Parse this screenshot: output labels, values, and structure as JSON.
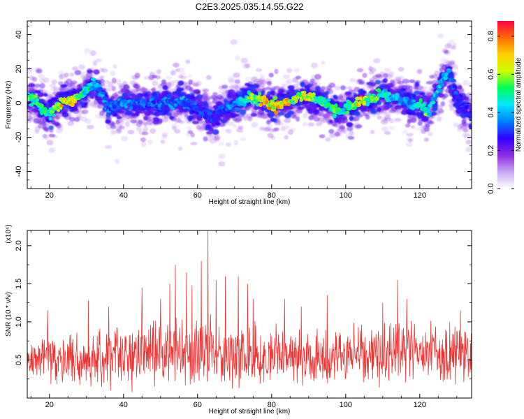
{
  "title": "C2E3.2025.035.14.55.G22",
  "chart_data": [
    {
      "type": "heatmap",
      "xlabel": "Height of straight line (km)",
      "ylabel": "Frequency (Hz)",
      "xlim": [
        14,
        134
      ],
      "ylim": [
        -50,
        48
      ],
      "xticks": [
        20,
        40,
        60,
        80,
        100,
        120
      ],
      "yticks": [
        -40,
        -20,
        0,
        20,
        40
      ],
      "colorbar": {
        "label": "Normalized spectral amplitude",
        "range": [
          0.0,
          0.88
        ],
        "ticks": [
          0.0,
          0.2,
          0.4,
          0.6,
          0.8
        ],
        "tick_labels": [
          "0.0",
          "0.2",
          "0.4",
          "0.6",
          "0.8"
        ],
        "colors": [
          "#ffffff",
          "#c9a6f5",
          "#8a2be2",
          "#3300ff",
          "#0080ff",
          "#00e5ff",
          "#00ff55",
          "#ccff00",
          "#ffd000",
          "#ff6a00",
          "#ff0044"
        ]
      },
      "ridge": {
        "x": [
          14,
          16,
          18,
          20,
          22,
          24,
          26,
          28,
          30,
          32,
          34,
          36,
          38,
          40,
          42,
          44,
          46,
          48,
          50,
          52,
          54,
          56,
          58,
          60,
          62,
          64,
          66,
          68,
          70,
          72,
          74,
          76,
          78,
          80,
          82,
          84,
          86,
          88,
          90,
          92,
          94,
          96,
          98,
          100,
          102,
          104,
          106,
          108,
          110,
          112,
          114,
          116,
          118,
          120,
          122,
          124,
          126,
          128,
          130,
          132,
          134
        ],
        "y": [
          3,
          2,
          -3,
          -6,
          -2,
          2,
          1,
          3,
          8,
          11,
          6,
          -4,
          -1,
          1,
          0,
          1,
          -1,
          0,
          -1,
          1,
          0,
          2,
          -1,
          -3,
          -6,
          -9,
          -5,
          -3,
          -1,
          1,
          3,
          2,
          1,
          -2,
          -1,
          0,
          2,
          4,
          3,
          2,
          1,
          -3,
          -5,
          -3,
          -2,
          1,
          2,
          3,
          5,
          4,
          3,
          1,
          -1,
          0,
          -5,
          3,
          13,
          18,
          3,
          -4,
          -8
        ],
        "peak_amplitude": [
          0.55,
          0.55,
          0.5,
          0.55,
          0.6,
          0.8,
          0.7,
          0.6,
          0.5,
          0.45,
          0.4,
          0.35,
          0.35,
          0.4,
          0.35,
          0.35,
          0.35,
          0.35,
          0.35,
          0.4,
          0.35,
          0.4,
          0.35,
          0.35,
          0.3,
          0.3,
          0.3,
          0.35,
          0.4,
          0.45,
          0.55,
          0.6,
          0.8,
          0.7,
          0.75,
          0.75,
          0.6,
          0.7,
          0.65,
          0.55,
          0.55,
          0.5,
          0.55,
          0.5,
          0.55,
          0.75,
          0.55,
          0.55,
          0.5,
          0.5,
          0.45,
          0.4,
          0.4,
          0.5,
          0.55,
          0.45,
          0.45,
          0.4,
          0.3,
          0.3,
          0.3
        ]
      }
    },
    {
      "type": "line",
      "xlabel": "Height of straight line (km)",
      "ylabel": "SNR (10 * v/v)",
      "y_multiplier": "(x10⁴)",
      "xlim": [
        14,
        134
      ],
      "ylim": [
        0,
        2.2
      ],
      "xticks": [
        20,
        40,
        60,
        80,
        100,
        120
      ],
      "yticks": [
        0.5,
        1.0,
        1.5,
        2.0
      ],
      "ytick_labels": [
        "0.5",
        "1.0",
        "1.5",
        "2.0"
      ],
      "series": [
        {
          "color": "#ee3333",
          "sample_step_km": 0.1,
          "envelope_x": [
            14,
            20,
            30,
            40,
            50,
            60,
            70,
            80,
            90,
            100,
            110,
            120,
            134
          ],
          "envelope_mean": [
            0.5,
            0.55,
            0.5,
            0.55,
            0.6,
            0.6,
            0.55,
            0.55,
            0.55,
            0.55,
            0.6,
            0.6,
            0.6
          ],
          "envelope_spread": [
            0.2,
            0.35,
            0.4,
            0.45,
            0.5,
            0.5,
            0.45,
            0.4,
            0.4,
            0.4,
            0.45,
            0.45,
            0.45
          ],
          "spikes": [
            {
              "x": 19.5,
              "y": 1.15
            },
            {
              "x": 30.5,
              "y": 1.28
            },
            {
              "x": 36.0,
              "y": 1.2
            },
            {
              "x": 45.0,
              "y": 1.45
            },
            {
              "x": 50.0,
              "y": 1.3
            },
            {
              "x": 52.5,
              "y": 1.5
            },
            {
              "x": 54.0,
              "y": 1.75
            },
            {
              "x": 57.0,
              "y": 1.65
            },
            {
              "x": 58.5,
              "y": 1.48
            },
            {
              "x": 61.0,
              "y": 1.8
            },
            {
              "x": 62.8,
              "y": 2.2
            },
            {
              "x": 65.0,
              "y": 1.55
            },
            {
              "x": 67.5,
              "y": 1.6
            },
            {
              "x": 71.0,
              "y": 1.6
            },
            {
              "x": 73.5,
              "y": 1.5
            },
            {
              "x": 75.0,
              "y": 1.3
            },
            {
              "x": 83.5,
              "y": 1.3
            },
            {
              "x": 88.0,
              "y": 1.2
            },
            {
              "x": 95.0,
              "y": 1.35
            },
            {
              "x": 110.0,
              "y": 1.25
            },
            {
              "x": 114.0,
              "y": 1.55
            },
            {
              "x": 116.5,
              "y": 1.3
            },
            {
              "x": 131.0,
              "y": 1.15
            }
          ]
        }
      ]
    }
  ]
}
